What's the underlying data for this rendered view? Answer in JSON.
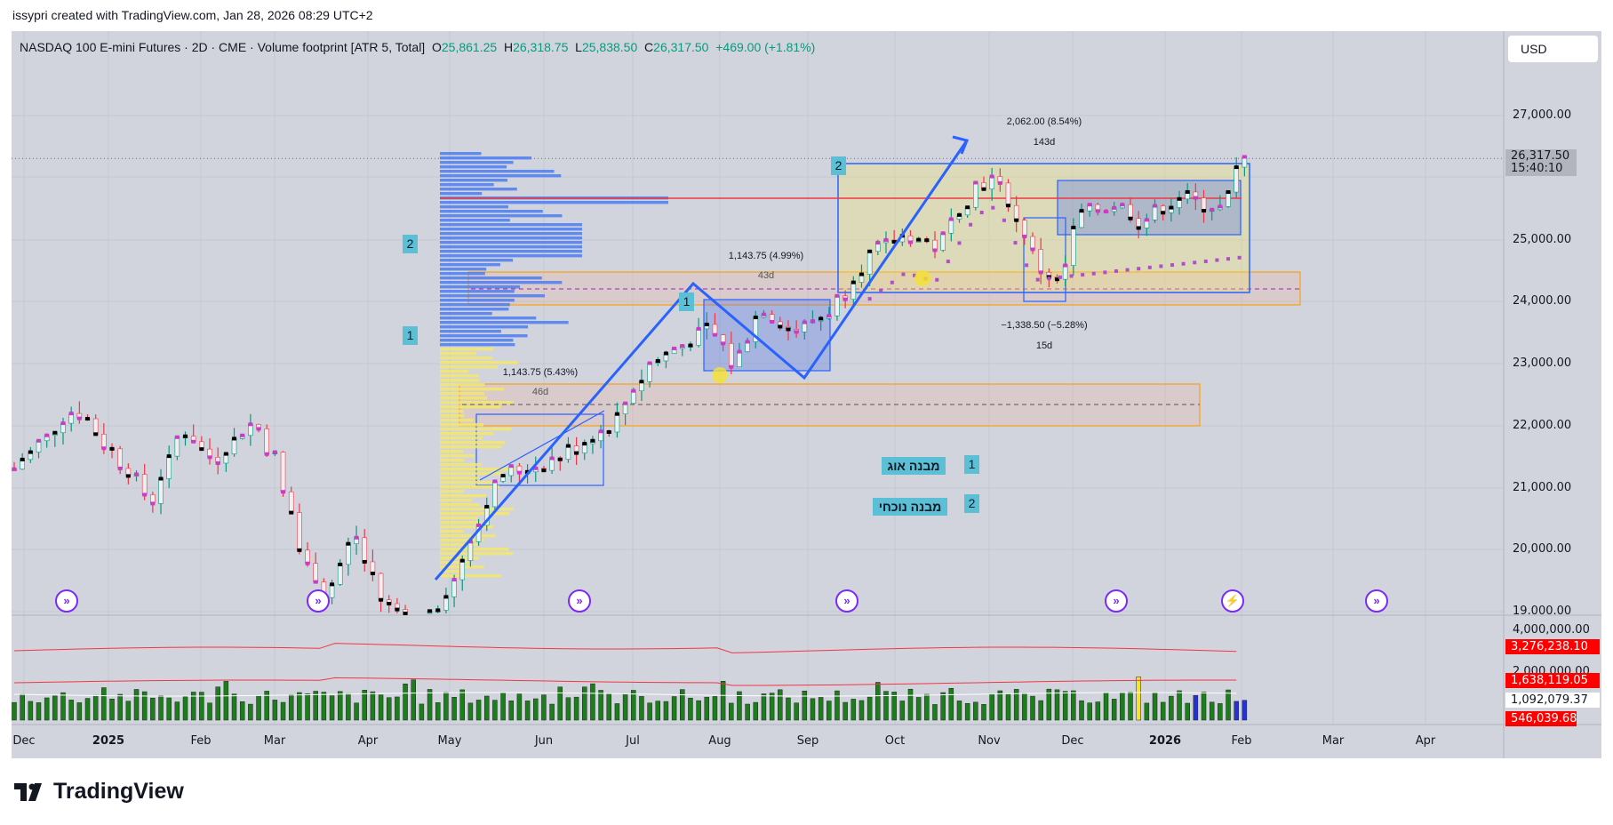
{
  "credit": "issypri created with TradingView.com, Jan 28, 2026 08:29 UTC+2",
  "legend": {
    "symbol": "NASDAQ 100 E-mini Futures · 2D · CME · Volume footprint [ATR 5, Total]",
    "o_label": "O",
    "o": "25,861.25",
    "h_label": "H",
    "h": "26,318.75",
    "l_label": "L",
    "l": "25,838.50",
    "c_label": "C",
    "c": "26,317.50",
    "change": "+469.00 (+1.81%)"
  },
  "currency": "USD",
  "price_axis": [
    "27,000.00",
    "25,000.00",
    "24,000.00",
    "23,000.00",
    "22,000.00",
    "21,000.00",
    "20,000.00",
    "19,000.00"
  ],
  "current_price": {
    "price": "26,317.50",
    "countdown": "15:40:10",
    "value": 26317.5
  },
  "volume_axis": {
    "ticks": [
      "4,000,000.00",
      "2,000,000.00"
    ],
    "tags": [
      "3,276,238.10",
      "1,638,119.05",
      "1,092,079.37",
      "546,039.68"
    ]
  },
  "time_axis": [
    "Dec",
    "2025",
    "Feb",
    "Mar",
    "Apr",
    "May",
    "Jun",
    "Jul",
    "Aug",
    "Sep",
    "Oct",
    "Nov",
    "Dec",
    "2026",
    "Feb",
    "Mar",
    "Apr"
  ],
  "measures": [
    {
      "value": "1,143.75 (4.99%)",
      "bars": "43d"
    },
    {
      "value": "1,143.75 (5.43%)",
      "bars": "46d"
    },
    {
      "value": "2,062.00 (8.54%)",
      "bars": "143d"
    },
    {
      "value": "−1,338.50 (−5.28%)",
      "bars": "15d"
    }
  ],
  "labels": {
    "n2a": "2",
    "n1a": "1",
    "n1b": "1",
    "n2b": "2"
  },
  "notes": [
    {
      "text": "מבנה אוג",
      "num": "1"
    },
    {
      "text": "מבנה נוכחי",
      "num": "2"
    }
  ],
  "brand": "TradingView",
  "colors": {
    "up": "#089981",
    "down": "#f23645",
    "bg": "#d1d4dc",
    "profile_up": "#4c7cf3",
    "profile_down": "#f5e76a",
    "annot": "#2962ff"
  },
  "price_keypoints": [
    [
      0,
      21300
    ],
    [
      12,
      22300
    ],
    [
      20,
      21500
    ],
    [
      27,
      20800
    ],
    [
      33,
      22000
    ],
    [
      39,
      21400
    ],
    [
      47,
      22100
    ],
    [
      51,
      21500
    ],
    [
      56,
      20000
    ],
    [
      61,
      19300
    ],
    [
      67,
      20200
    ],
    [
      72,
      19200
    ],
    [
      79,
      18800
    ],
    [
      85,
      19300
    ],
    [
      92,
      20600
    ],
    [
      95,
      21200
    ],
    [
      105,
      21400
    ],
    [
      117,
      22000
    ],
    [
      125,
      23000
    ],
    [
      137,
      23600
    ],
    [
      141,
      23000
    ],
    [
      147,
      23900
    ],
    [
      153,
      23500
    ],
    [
      161,
      23900
    ],
    [
      167,
      24700
    ],
    [
      175,
      25100
    ],
    [
      181,
      24900
    ],
    [
      189,
      25900
    ],
    [
      193,
      26000
    ],
    [
      197,
      25300
    ],
    [
      201,
      24600
    ],
    [
      205,
      24300
    ],
    [
      209,
      25400
    ],
    [
      217,
      25600
    ],
    [
      221,
      25300
    ],
    [
      229,
      25700
    ],
    [
      237,
      25500
    ],
    [
      241,
      26300
    ]
  ]
}
